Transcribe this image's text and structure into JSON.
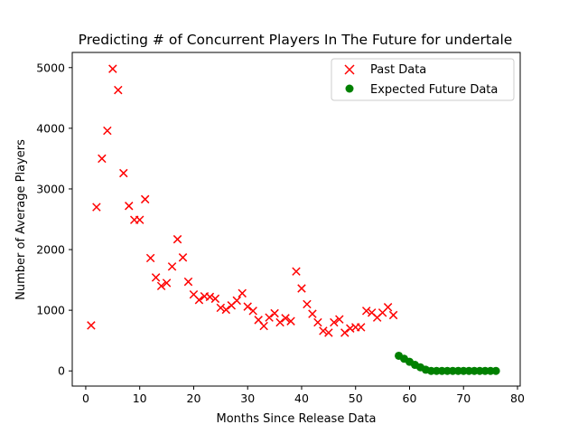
{
  "chart_data": {
    "type": "scatter",
    "title": "Predicting # of Concurrent Players In The Future for undertale",
    "xlabel": "Months Since Release Data",
    "ylabel": "Number of Average Players",
    "xlim": [
      -2.5,
      80.5
    ],
    "ylim": [
      -250,
      5250
    ],
    "xticks": [
      0,
      10,
      20,
      30,
      40,
      50,
      60,
      70,
      80
    ],
    "yticks": [
      0,
      1000,
      2000,
      3000,
      4000,
      5000
    ],
    "grid": false,
    "legend_position": "top-right",
    "series": [
      {
        "name": "Past Data",
        "marker": "x",
        "color": "#ff0000",
        "x": [
          1,
          2,
          3,
          4,
          5,
          6,
          7,
          8,
          9,
          10,
          11,
          12,
          13,
          14,
          15,
          16,
          17,
          18,
          19,
          20,
          21,
          22,
          23,
          24,
          25,
          26,
          27,
          28,
          29,
          30,
          31,
          32,
          33,
          34,
          35,
          36,
          37,
          38,
          39,
          40,
          41,
          42,
          43,
          44,
          45,
          46,
          47,
          48,
          49,
          50,
          51,
          52,
          53,
          54,
          55,
          56,
          57
        ],
        "y": [
          750,
          2700,
          3500,
          3960,
          4980,
          4630,
          3260,
          2720,
          2490,
          2490,
          2830,
          1860,
          1540,
          1400,
          1450,
          1720,
          2170,
          1870,
          1470,
          1260,
          1170,
          1230,
          1220,
          1190,
          1040,
          1010,
          1080,
          1160,
          1280,
          1060,
          990,
          840,
          740,
          880,
          950,
          800,
          870,
          820,
          1640,
          1360,
          1100,
          940,
          800,
          660,
          630,
          800,
          850,
          630,
          700,
          720,
          720,
          990,
          960,
          880,
          960,
          1050,
          920
        ]
      },
      {
        "name": "Expected Future Data",
        "marker": "o",
        "color": "#008000",
        "x": [
          58,
          59,
          60,
          61,
          62,
          63,
          64,
          65,
          66,
          67,
          68,
          69,
          70,
          71,
          72,
          73,
          74,
          75,
          76
        ],
        "y": [
          250,
          200,
          150,
          100,
          60,
          20,
          0,
          0,
          0,
          0,
          0,
          0,
          0,
          0,
          0,
          0,
          0,
          0,
          0
        ]
      }
    ]
  }
}
